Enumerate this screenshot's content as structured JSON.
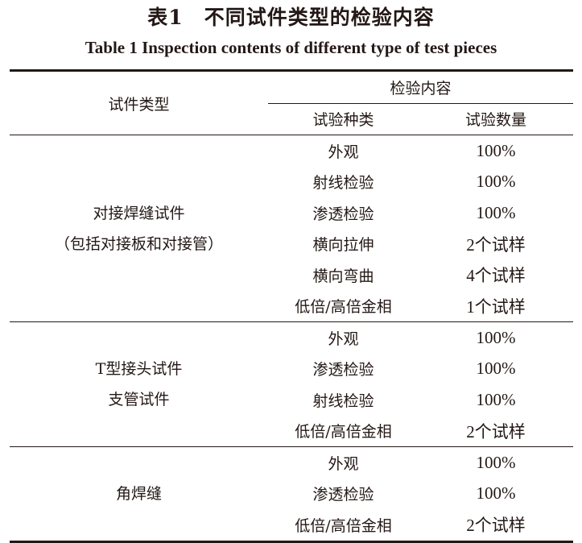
{
  "caption": {
    "cn": "表1　不同试件类型的检验内容",
    "en": "Table 1    Inspection contents of different type of test pieces"
  },
  "header": {
    "specimen_type": "试件类型",
    "inspection_content": "检验内容",
    "test_kind": "试验种类",
    "test_quantity": "试验数量"
  },
  "groups": [
    {
      "type_lines": [
        "对接焊缝试件",
        "（包括对接板和对接管）"
      ],
      "rows": [
        [
          "外观",
          "100%"
        ],
        [
          "射线检验",
          "100%"
        ],
        [
          "渗透检验",
          "100%"
        ],
        [
          "横向拉伸",
          "2个试样"
        ],
        [
          "横向弯曲",
          "4个试样"
        ],
        [
          "低倍/高倍金相",
          "1个试样"
        ]
      ]
    },
    {
      "type_lines": [
        "T型接头试件",
        "支管试件"
      ],
      "rows": [
        [
          "外观",
          "100%"
        ],
        [
          "渗透检验",
          "100%"
        ],
        [
          "射线检验",
          "100%"
        ],
        [
          "低倍/高倍金相",
          "2个试样"
        ]
      ]
    },
    {
      "type_lines": [
        "角焊缝"
      ],
      "rows": [
        [
          "外观",
          "100%"
        ],
        [
          "渗透检验",
          "100%"
        ],
        [
          "低倍/高倍金相",
          "2个试样"
        ]
      ]
    }
  ]
}
